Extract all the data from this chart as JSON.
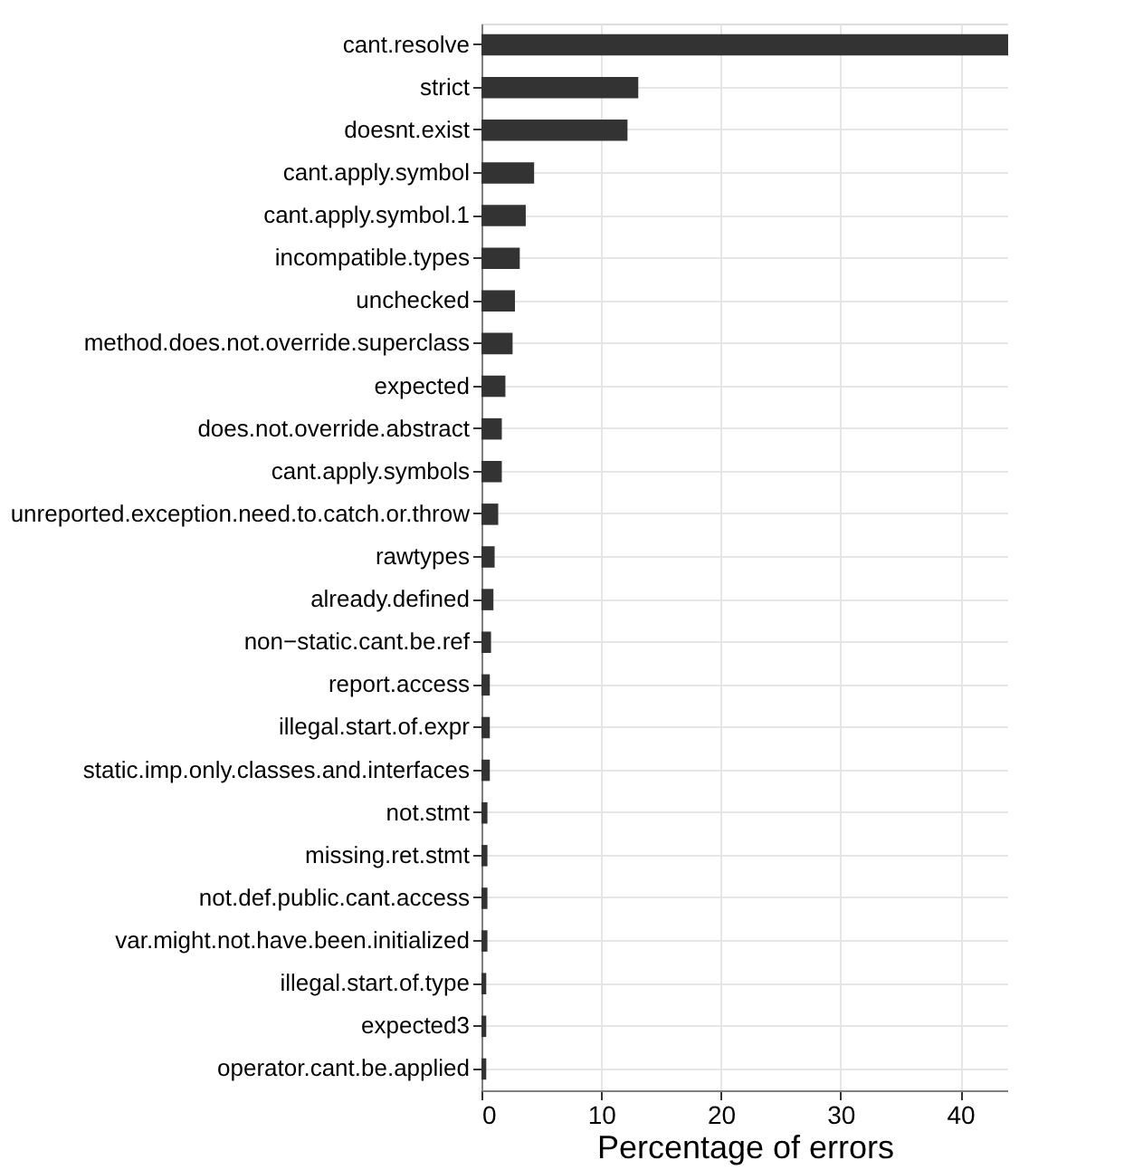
{
  "chart_data": {
    "type": "bar",
    "orientation": "horizontal",
    "xlabel": "Percentage of errors",
    "categories": [
      "cant.resolve",
      "strict",
      "doesnt.exist",
      "cant.apply.symbol",
      "cant.apply.symbol.1",
      "incompatible.types",
      "unchecked",
      "method.does.not.override.superclass",
      "expected",
      "does.not.override.abstract",
      "cant.apply.symbols",
      "unreported.exception.need.to.catch.or.throw",
      "rawtypes",
      "already.defined",
      "non−static.cant.be.ref",
      "report.access",
      "illegal.start.of.expr",
      "static.imp.only.classes.and.interfaces",
      "not.stmt",
      "missing.ret.stmt",
      "not.def.public.cant.access",
      "var.might.not.have.been.initialized",
      "illegal.start.of.type",
      "expected3",
      "operator.cant.be.applied"
    ],
    "values": [
      44,
      13.1,
      12.2,
      4.4,
      3.7,
      3.2,
      2.8,
      2.6,
      2.0,
      1.7,
      1.7,
      1.4,
      1.1,
      1.0,
      0.8,
      0.7,
      0.7,
      0.7,
      0.5,
      0.5,
      0.5,
      0.5,
      0.4,
      0.4,
      0.4
    ],
    "color": "#333333",
    "xlim": [
      0,
      44
    ],
    "xticks": [
      0,
      10,
      20,
      30,
      40
    ],
    "grid": true
  }
}
